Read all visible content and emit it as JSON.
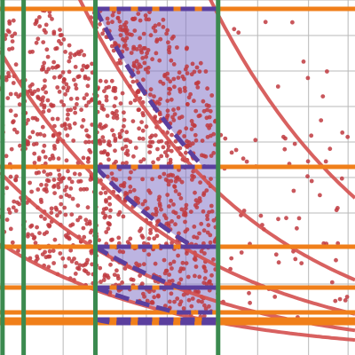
{
  "chart_data": {
    "type": "scatter",
    "title": "",
    "xlabel": "",
    "ylabel": "",
    "x_scale": "log",
    "xlim": [
      0.35,
      2.6
    ],
    "ylim": [
      0,
      1
    ],
    "grid": true,
    "legend": "none",
    "colors": {
      "points": "#c0393f",
      "curves": "#d4504f",
      "vertical_lines": "#3b8a4f",
      "horizontal_lines": "#f07f1a",
      "highlight_fill": "#8577c9",
      "highlight_edge": "#5b3f9e",
      "grid": "#b8b8b8"
    },
    "vertical_lines_x": [
      0.355,
      0.4,
      0.6,
      1.2
    ],
    "horizontal_lines_y": [
      0.975,
      0.53,
      0.305,
      0.19,
      0.12,
      0.1,
      0.09
    ],
    "curves": [
      {
        "k": 0.11
      },
      {
        "k": 0.18
      },
      {
        "k": 0.3
      },
      {
        "k": 0.55
      },
      {
        "k": 1.15
      }
    ],
    "highlight": {
      "x_range": [
        0.6,
        1.2
      ],
      "bands": [
        {
          "y_bottom": 0.53,
          "y_top": 0.975
        },
        {
          "y_bottom": 0.305,
          "y_top": 0.53
        },
        {
          "y_bottom": 0.19,
          "y_top": 0.305
        },
        {
          "y_bottom": 0.12,
          "y_top": 0.19
        },
        {
          "y_bottom": 0.09,
          "y_top": 0.1
        }
      ]
    },
    "scatter_regions": [
      {
        "x_range": [
          0.35,
          0.4
        ],
        "y_range": [
          0.1,
          0.975
        ],
        "count": 70
      },
      {
        "x_range": [
          0.4,
          0.6
        ],
        "y_range": [
          0.1,
          0.975
        ],
        "count": 380
      },
      {
        "x_range": [
          0.6,
          1.2
        ],
        "y_range": [
          0.1,
          0.975
        ],
        "count": 780
      },
      {
        "x_range": [
          1.2,
          2.6
        ],
        "y_range": [
          0.1,
          0.975
        ],
        "count": 70
      }
    ]
  }
}
